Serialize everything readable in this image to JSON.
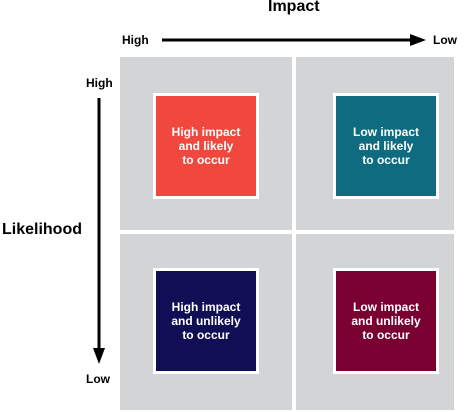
{
  "axes": {
    "impact": {
      "title": "Impact",
      "start": "High",
      "end": "Low"
    },
    "likelihood": {
      "title": "Likelihood",
      "start": "High",
      "end": "Low"
    }
  },
  "quadrants": [
    {
      "label": "High impact\nand likely\nto occur",
      "color": "#f0483e"
    },
    {
      "label": "Low impact\nand likely\nto occur",
      "color": "#0f6b80"
    },
    {
      "label": "High impact\nand unlikely\nto occur",
      "color": "#100e55"
    },
    {
      "label": "Low impact\nand unlikely\nto occur",
      "color": "#7a0032"
    }
  ]
}
